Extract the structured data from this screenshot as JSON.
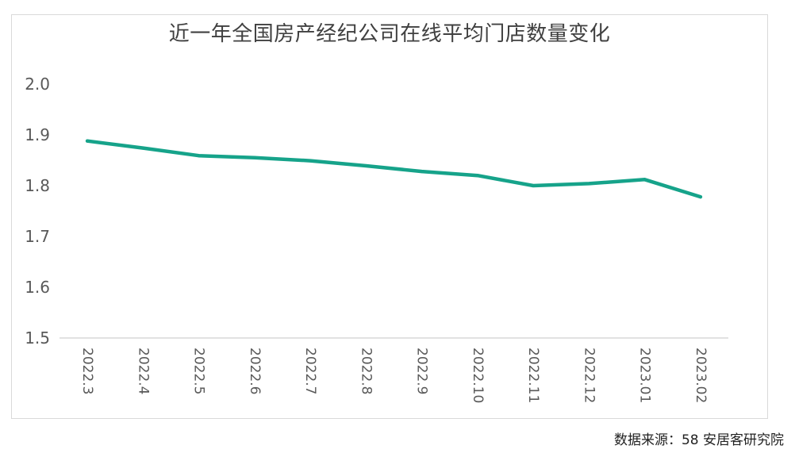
{
  "chart_data": {
    "type": "line",
    "title": "近一年全国房产经纪公司在线平均门店数量变化",
    "categories": [
      "2022.3",
      "2022.4",
      "2022.5",
      "2022.6",
      "2022.7",
      "2022.8",
      "2022.9",
      "2022.10",
      "2022.11",
      "2022.12",
      "2023.01",
      "2023.02"
    ],
    "values": [
      1.888,
      1.874,
      1.859,
      1.855,
      1.849,
      1.839,
      1.828,
      1.82,
      1.8,
      1.804,
      1.812,
      1.778
    ],
    "ylim": [
      1.5,
      2.0
    ],
    "yticks": [
      "1.5",
      "1.6",
      "1.7",
      "1.8",
      "1.9",
      "2.0"
    ],
    "grid": false,
    "line_color": "#16a38a"
  },
  "source_note": "数据来源：58 安居客研究院"
}
